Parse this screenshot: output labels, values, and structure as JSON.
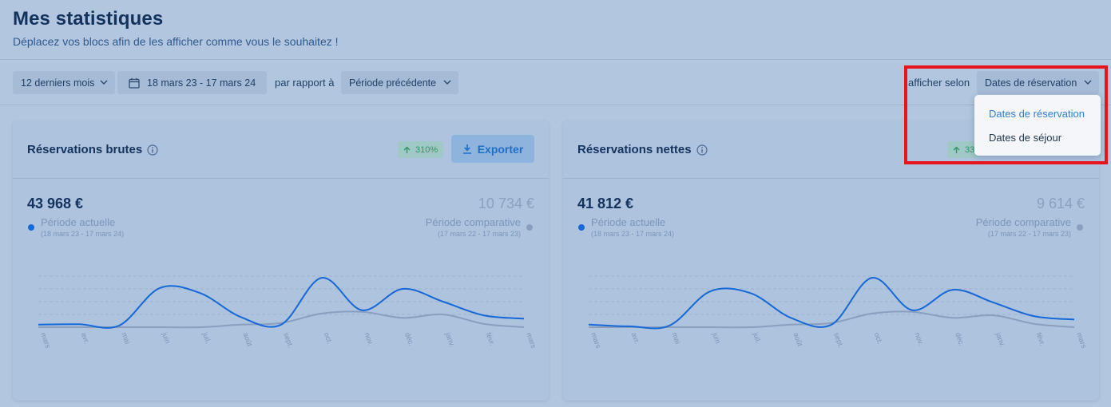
{
  "header": {
    "title": "Mes statistiques",
    "subtitle": "Déplacez vos blocs afin de les afficher comme vous le souhaitez !"
  },
  "filters": {
    "period": "12 derniers mois",
    "date_range": "18 mars 23 - 17 mars 24",
    "compare_label": "par rapport à",
    "compare_value": "Période précédente",
    "display_label": "afficher selon",
    "display_value": "Dates de réservation"
  },
  "dropdown": {
    "options": [
      "Dates de réservation",
      "Dates de séjour"
    ],
    "selected_index": 0
  },
  "cards": [
    {
      "title": "Réservations brutes",
      "badge": "310%",
      "export_label": "Exporter",
      "amount_current": "43 968 €",
      "amount_compare": "10 734 €",
      "current_label": "Période actuelle",
      "current_range": "(18 mars 23 - 17 mars 24)",
      "compare_label": "Période comparative",
      "compare_range": "(17 mars 22 - 17 mars 23)"
    },
    {
      "title": "Réservations nettes",
      "badge": "33",
      "amount_current": "41 812 €",
      "amount_compare": "9 614 €",
      "current_label": "Période actuelle",
      "current_range": "(18 mars 23 - 17 mars 24)",
      "compare_label": "Période comparative",
      "compare_range": "(17 mars 22 - 17 mars 23)"
    }
  ],
  "colors": {
    "current_series": "#1768d6",
    "compare_series": "#8a9fbe",
    "badge_text": "#2b9a63",
    "highlight": "#e8141d"
  },
  "chart_data": [
    {
      "type": "line",
      "categories": [
        "mars",
        "avr.",
        "mai",
        "juin",
        "juil.",
        "août",
        "sept.",
        "oct.",
        "nov.",
        "déc.",
        "janv.",
        "févr.",
        "mars"
      ],
      "series": [
        {
          "values": [
            3,
            3.5,
            2,
            46,
            40,
            12,
            3,
            58,
            20,
            45,
            30,
            14,
            10
          ]
        },
        {
          "values": [
            0,
            0,
            0,
            0,
            0,
            3,
            5,
            16,
            18,
            11,
            15,
            4,
            0
          ]
        }
      ],
      "ylim": [
        0,
        60
      ],
      "grid": true
    },
    {
      "type": "line",
      "categories": [
        "mars",
        "avr.",
        "mai",
        "juin",
        "juil.",
        "août",
        "sept.",
        "oct.",
        "nov.",
        "déc.",
        "janv.",
        "févr.",
        "mars"
      ],
      "series": [
        {
          "values": [
            3,
            1,
            2,
            42,
            40,
            11,
            3,
            58,
            20,
            44,
            29,
            13,
            9
          ]
        },
        {
          "values": [
            0,
            0,
            0,
            0,
            0,
            3,
            5,
            16,
            18,
            11,
            14,
            4,
            0
          ]
        }
      ],
      "ylim": [
        0,
        60
      ],
      "grid": true
    }
  ]
}
